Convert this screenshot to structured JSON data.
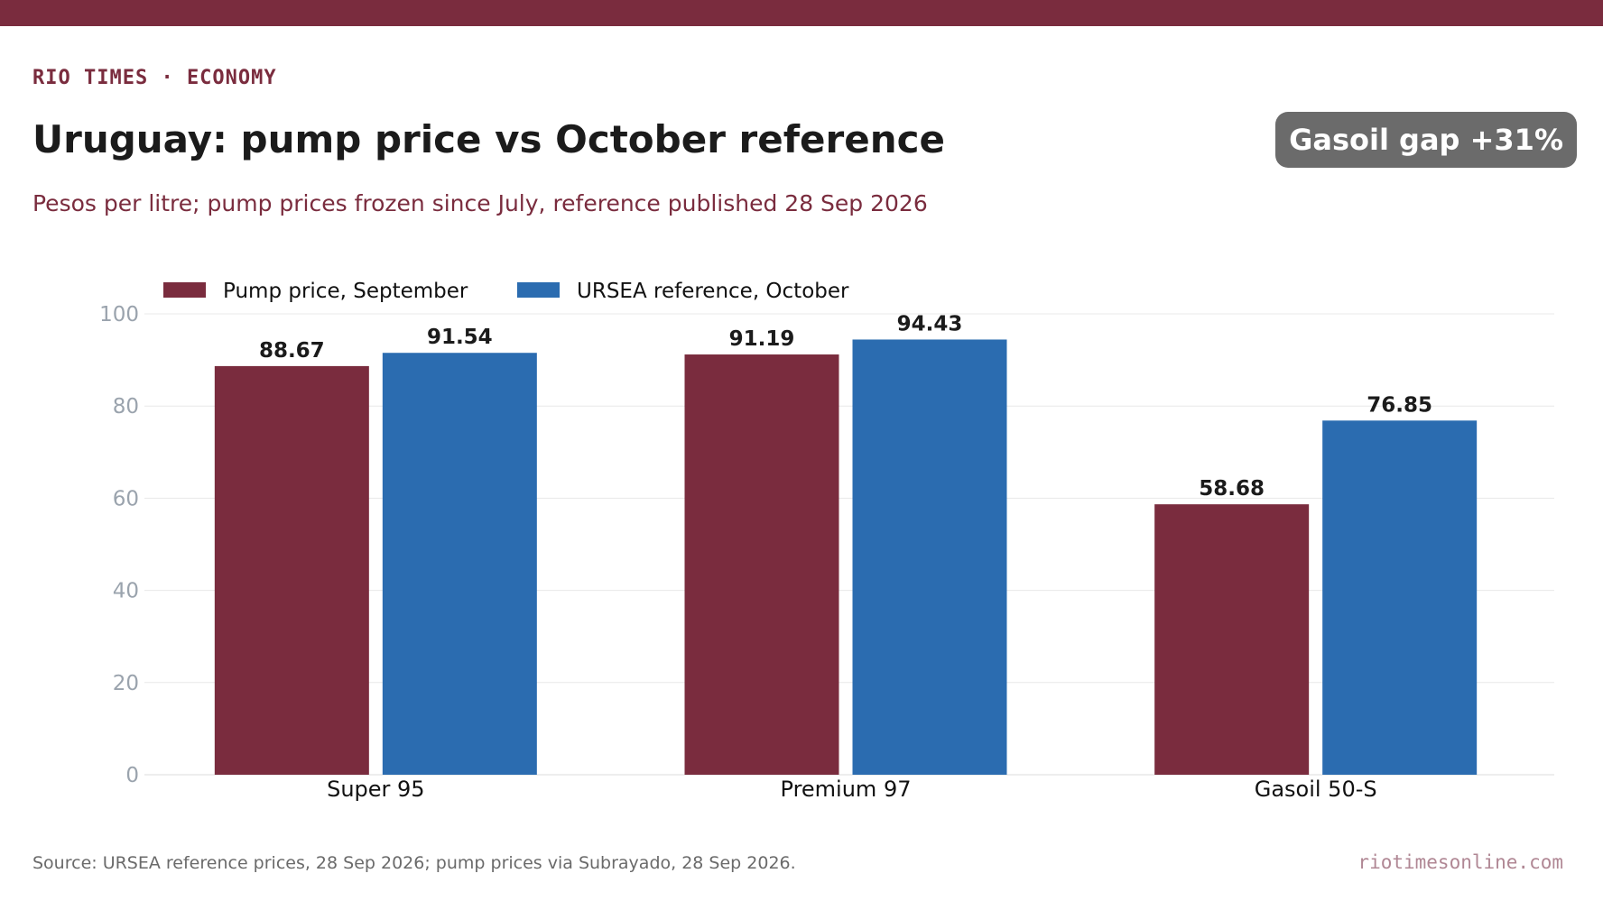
{
  "header": {
    "kicker": "RIO TIMES · ECONOMY",
    "title": "Uruguay: pump price vs October reference",
    "subtitle": "Pesos per litre; pump prices frozen since July, reference published 28 Sep 2026",
    "badge": "Gasoil gap +31%"
  },
  "footer": {
    "source": "Source: URSEA reference prices, 28 Sep 2026; pump prices via Subrayado, 28 Sep 2026.",
    "site": "riotimesonline.com"
  },
  "colors": {
    "brand": "#7a2c3e",
    "pump": "#7a2c3e",
    "reference": "#2b6cb0",
    "badge": "#6b6b6b"
  },
  "chart_data": {
    "type": "bar",
    "title": "Uruguay: pump price vs October reference",
    "subtitle": "Pesos per litre; pump prices frozen since July, reference published 28 Sep 2026",
    "categories": [
      "Super 95",
      "Premium 97",
      "Gasoil 50-S"
    ],
    "series": [
      {
        "name": "Pump price, September",
        "values": [
          88.67,
          91.19,
          58.68
        ],
        "color": "#7a2c3e"
      },
      {
        "name": "URSEA reference, October",
        "values": [
          91.54,
          94.43,
          76.85
        ],
        "color": "#2b6cb0"
      }
    ],
    "value_labels": [
      [
        "88.67",
        "91.19",
        "58.68"
      ],
      [
        "91.54",
        "94.43",
        "76.85"
      ]
    ],
    "ylim": [
      0,
      100
    ],
    "yticks": [
      "0",
      "20",
      "40",
      "60",
      "80",
      "100"
    ],
    "xlabel": "",
    "ylabel": "",
    "grid": true,
    "legend_position": "top-left"
  }
}
